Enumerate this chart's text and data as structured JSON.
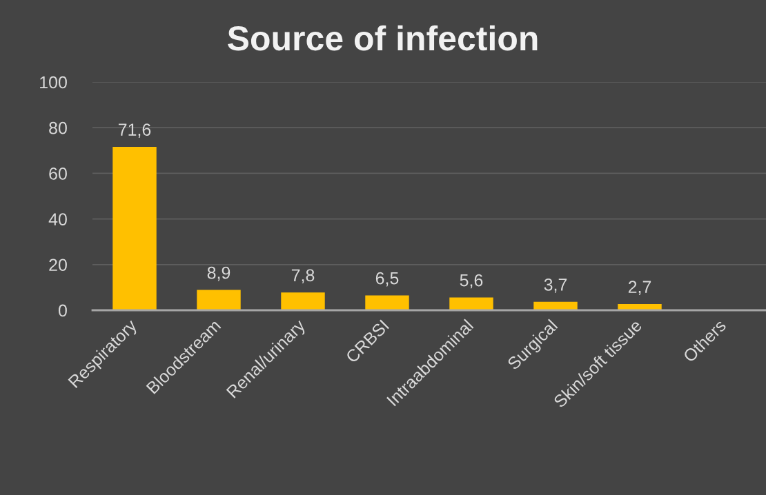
{
  "chart_data": {
    "type": "bar",
    "title": "Source of infection",
    "categories": [
      "Respiratory",
      "Bloodstream",
      "Renal/urinary",
      "CRBSI",
      "Intraabdominal",
      "Surgical",
      "Skin/soft tissue",
      "Others"
    ],
    "values": [
      71.6,
      8.9,
      7.8,
      6.5,
      5.6,
      3.7,
      2.7,
      null
    ],
    "value_labels": [
      "71,6",
      "8,9",
      "7,8",
      "6,5",
      "5,6",
      "3,7",
      "2,7",
      null
    ],
    "color": "#ffc000",
    "ylim": [
      0,
      100
    ],
    "yticks": [
      0,
      20,
      40,
      60,
      80,
      100
    ],
    "grid": "y"
  }
}
